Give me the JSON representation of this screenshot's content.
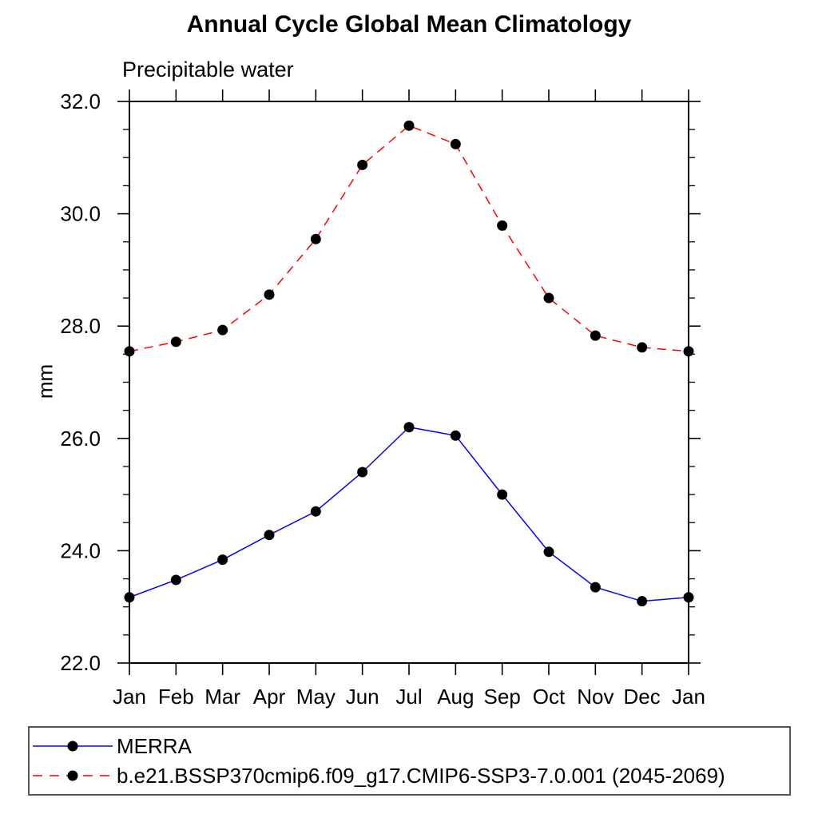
{
  "chart_data": {
    "type": "line",
    "title": "Annual Cycle Global Mean Climatology",
    "subtitle": "Precipitable water",
    "ylabel": "mm",
    "xlabel": "",
    "ylim": [
      22.0,
      32.0
    ],
    "ytick_step": 2.0,
    "ytick_minor_step": 0.5,
    "ytick_labels": [
      "22.0",
      "24.0",
      "26.0",
      "28.0",
      "30.0",
      "32.0"
    ],
    "grid": false,
    "legend_position": "bottom",
    "axis_color": "#000000",
    "marker_color": "#000000",
    "categories": [
      "Jan",
      "Feb",
      "Mar",
      "Apr",
      "May",
      "Jun",
      "Jul",
      "Aug",
      "Sep",
      "Oct",
      "Nov",
      "Dec",
      "Jan"
    ],
    "series": [
      {
        "name": "MERRA",
        "color": "#0000ff",
        "style": "solid",
        "marker": "filled-circle",
        "values": [
          23.17,
          23.48,
          23.84,
          24.28,
          24.7,
          25.4,
          26.2,
          26.05,
          25.0,
          23.98,
          23.35,
          23.1,
          23.17
        ]
      },
      {
        "name": "b.e21.BSSP370cmip6.f09_g17.CMIP6-SSP3-7.0.001 (2045-2069)",
        "color": "#ff0000",
        "style": "dashed",
        "marker": "filled-circle",
        "values": [
          27.55,
          27.72,
          27.93,
          28.56,
          29.55,
          30.87,
          31.57,
          31.24,
          29.79,
          28.5,
          27.83,
          27.62,
          27.55
        ]
      }
    ]
  }
}
